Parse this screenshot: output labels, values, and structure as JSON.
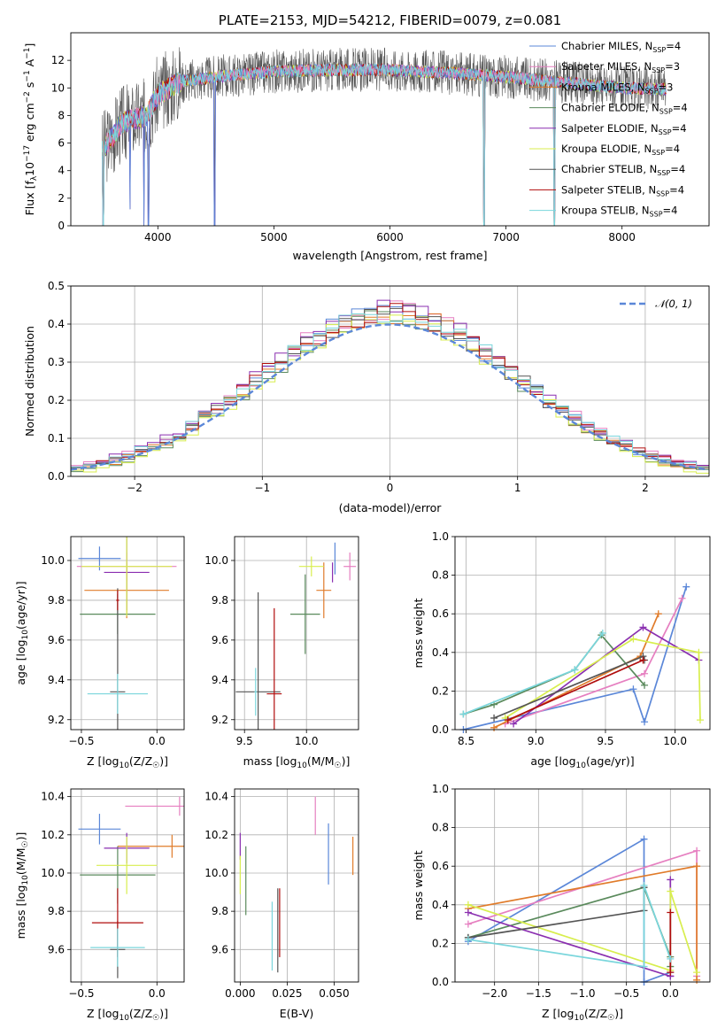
{
  "figure": {
    "title": "PLATE=2153, MJD=54212, FIBERID=0079, z=0.081"
  },
  "colors": {
    "Chabrier MILES": "#5b87d8",
    "Salpeter MILES": "#e67fc0",
    "Kroupa MILES": "#e07b2a",
    "Chabrier ELODIE": "#5a8a5c",
    "Salpeter ELODIE": "#8a2fb0",
    "Kroupa ELODIE": "#d8ee4e",
    "Chabrier STELIB": "#555555",
    "Salpeter STELIB": "#b00c0c",
    "Kroupa STELIB": "#7ad6dc"
  },
  "chart_data": [
    {
      "id": "spectrum",
      "type": "line",
      "title": "PLATE=2153, MJD=54212, FIBERID=0079, z=0.081",
      "xlabel": "wavelength [Angstrom, rest frame]",
      "ylabel": "Flux [f",
      "ylabel_sub": "λ",
      "ylabel_mid": "10",
      "ylabel_sup1": "−17",
      "ylabel_rest": " erg cm",
      "ylabel_sup2": "−2",
      "ylabel_rest2": " s",
      "ylabel_sup3": "−1",
      "ylabel_rest3": " A",
      "ylabel_sup4": "−1",
      "ylabel_end": "]",
      "xlim": [
        3250,
        8750
      ],
      "ylim": [
        0,
        14
      ],
      "xticks": [
        4000,
        5000,
        6000,
        7000,
        8000
      ],
      "yticks": [
        0,
        2,
        4,
        6,
        8,
        10,
        12
      ],
      "data_range": [
        3520,
        8380
      ],
      "legend_position": "right",
      "legend": [
        {
          "name": "Chabrier MILES",
          "base": "Chabrier MILES, N",
          "sub": "SSP",
          "value": "=4"
        },
        {
          "name": "Salpeter MILES",
          "base": "Salpeter MILES, N",
          "sub": "SSP",
          "value": "=3"
        },
        {
          "name": "Kroupa MILES",
          "base": "Kroupa MILES, N",
          "sub": "SSP",
          "value": "=3"
        },
        {
          "name": "Chabrier ELODIE",
          "base": "Chabrier ELODIE, N",
          "sub": "SSP",
          "value": "=4"
        },
        {
          "name": "Salpeter ELODIE",
          "base": "Salpeter ELODIE, N",
          "sub": "SSP",
          "value": "=4"
        },
        {
          "name": "Kroupa ELODIE",
          "base": "Kroupa ELODIE, N",
          "sub": "SSP",
          "value": "=4"
        },
        {
          "name": "Chabrier STELIB",
          "base": "Chabrier STELIB, N",
          "sub": "SSP",
          "value": "=4"
        },
        {
          "name": "Salpeter STELIB",
          "base": "Salpeter STELIB, N",
          "sub": "SSP",
          "value": "=4"
        },
        {
          "name": "Kroupa STELIB",
          "base": "Kroupa STELIB, N",
          "sub": "SSP",
          "value": "=4"
        }
      ],
      "shape_points": [
        [
          3520,
          5.5
        ],
        [
          3700,
          7.5
        ],
        [
          3900,
          8.0
        ],
        [
          4000,
          9.5
        ],
        [
          4200,
          10.5
        ],
        [
          4500,
          10.8
        ],
        [
          5000,
          11.2
        ],
        [
          5500,
          11.3
        ],
        [
          6000,
          11.3
        ],
        [
          6500,
          11.1
        ],
        [
          7000,
          10.8
        ],
        [
          7500,
          10.4
        ],
        [
          8000,
          10.0
        ],
        [
          8380,
          9.9
        ]
      ],
      "spikes_down": [
        {
          "x": 3530,
          "y": 0.0
        },
        {
          "x": 3760,
          "y": 1.2
        },
        {
          "x": 3880,
          "y": 0.0
        },
        {
          "x": 3920,
          "y": 0.0
        },
        {
          "x": 4490,
          "y": 0.0
        },
        {
          "x": 6810,
          "y": 0.0
        },
        {
          "x": 7415,
          "y": 0.0
        }
      ]
    },
    {
      "id": "residuals",
      "type": "histogram",
      "xlabel": "(data-model)/error",
      "ylabel": "Normed distribution",
      "xlim": [
        -2.5,
        2.5
      ],
      "ylim": [
        0,
        0.5
      ],
      "xticks": [
        -2,
        -1,
        0,
        1,
        2
      ],
      "xtick_labels": [
        "−2",
        "−1",
        "0",
        "1",
        "2"
      ],
      "yticks": [
        0.0,
        0.1,
        0.2,
        0.3,
        0.4,
        0.5
      ],
      "ytick_labels": [
        "0.0",
        "0.1",
        "0.2",
        "0.3",
        "0.4",
        "0.5"
      ],
      "bin_width": 0.1,
      "legend_position": "top-right",
      "legend_label": "𝒩(0, 1)",
      "series": [
        {
          "name": "Chabrier MILES",
          "offset": 0.0,
          "seed": 1
        },
        {
          "name": "Salpeter MILES",
          "offset": 0.006,
          "seed": 2
        },
        {
          "name": "Kroupa MILES",
          "offset": -0.004,
          "seed": 3
        },
        {
          "name": "Chabrier ELODIE",
          "offset": -0.006,
          "seed": 4
        },
        {
          "name": "Salpeter ELODIE",
          "offset": 0.008,
          "seed": 5
        },
        {
          "name": "Kroupa ELODIE",
          "offset": -0.01,
          "seed": 6
        },
        {
          "name": "Chabrier STELIB",
          "offset": -0.002,
          "seed": 7
        },
        {
          "name": "Salpeter STELIB",
          "offset": 0.002,
          "seed": 8
        },
        {
          "name": "Kroupa STELIB",
          "offset": 0.004,
          "seed": 9
        }
      ]
    },
    {
      "id": "age-vs-Z",
      "type": "errorbar",
      "xlabel": "Z [log",
      "xlabel_sub": "10",
      "xlabel_rest": "(Z/Z",
      "xlabel_sub2": "☉",
      "xlabel_end": ")]",
      "ylabel": "age  [log",
      "ylabel_sub": "10",
      "ylabel_rest": "(age/yr)]",
      "xlim": [
        -0.57,
        0.18
      ],
      "ylim": [
        9.15,
        10.12
      ],
      "xticks": [
        -0.5,
        0.0
      ],
      "xtick_labels": [
        "−0.5",
        "0.0"
      ],
      "yticks": [
        9.2,
        9.4,
        9.6,
        9.8,
        10.0
      ],
      "ytick_labels": [
        "9.2",
        "9.4",
        "9.6",
        "9.8",
        "10.0"
      ],
      "points": [
        {
          "name": "Chabrier MILES",
          "x": -0.38,
          "xerr": 0.14,
          "y": 10.01,
          "yerr": 0.06
        },
        {
          "name": "Salpeter MILES",
          "x": -0.2,
          "xerr": 0.33,
          "y": 9.97,
          "yerr": 0.07
        },
        {
          "name": "Kroupa MILES",
          "x": -0.2,
          "xerr": 0.28,
          "y": 9.85,
          "yerr": 0.14
        },
        {
          "name": "Chabrier ELODIE",
          "x": -0.26,
          "xerr": 0.25,
          "y": 9.73,
          "yerr": 0.1
        },
        {
          "name": "Salpeter ELODIE",
          "x": -0.2,
          "xerr": 0.15,
          "y": 9.94,
          "yerr": 0.19
        },
        {
          "name": "Kroupa ELODIE",
          "x": -0.2,
          "xerr": 0.3,
          "y": 9.97,
          "yerr": 0.25
        },
        {
          "name": "Chabrier STELIB",
          "x": -0.26,
          "xerr": 0.05,
          "y": 9.34,
          "yerr": 0.52
        },
        {
          "name": "Salpeter STELIB",
          "x": -0.26,
          "xerr": 0.01,
          "y": 9.8,
          "yerr": 0.05
        },
        {
          "name": "Kroupa STELIB",
          "x": -0.26,
          "xerr": 0.2,
          "y": 9.33,
          "yerr": 0.1
        }
      ]
    },
    {
      "id": "age-vs-mass",
      "type": "errorbar",
      "xlabel": "mass [log",
      "xlabel_sub": "10",
      "xlabel_rest": "(M/M",
      "xlabel_sub2": "☉",
      "xlabel_end": ")]",
      "xlim": [
        9.42,
        10.42
      ],
      "ylim": [
        9.15,
        10.12
      ],
      "xticks": [
        9.5,
        10.0
      ],
      "xtick_labels": [
        "9.5",
        "10.0"
      ],
      "yticks": [
        9.2,
        9.4,
        9.6,
        9.8,
        10.0
      ],
      "ytick_labels": [
        "9.2",
        "9.4",
        "9.6",
        "9.8",
        "10.0"
      ],
      "points": [
        {
          "name": "Chabrier MILES",
          "x": 10.23,
          "xerr": 0.0,
          "y": 10.01,
          "yerr": 0.08
        },
        {
          "name": "Salpeter MILES",
          "x": 10.35,
          "xerr": 0.05,
          "y": 9.97,
          "yerr": 0.07
        },
        {
          "name": "Kroupa MILES",
          "x": 10.14,
          "xerr": 0.06,
          "y": 9.85,
          "yerr": 0.14
        },
        {
          "name": "Chabrier ELODIE",
          "x": 9.99,
          "xerr": 0.12,
          "y": 9.73,
          "yerr": 0.2
        },
        {
          "name": "Salpeter ELODIE",
          "x": 10.21,
          "xerr": 0.0,
          "y": 9.94,
          "yerr": 0.05
        },
        {
          "name": "Kroupa ELODIE",
          "x": 10.04,
          "xerr": 0.1,
          "y": 9.97,
          "yerr": 0.05
        },
        {
          "name": "Chabrier STELIB",
          "x": 9.61,
          "xerr": 0.18,
          "y": 9.34,
          "yerr": 0.5
        },
        {
          "name": "Salpeter STELIB",
          "x": 9.74,
          "xerr": 0.06,
          "y": 9.33,
          "yerr": 0.43
        },
        {
          "name": "Kroupa STELIB",
          "x": 9.59,
          "xerr": 0.01,
          "y": 9.34,
          "yerr": 0.12
        }
      ]
    },
    {
      "id": "weight-vs-age",
      "type": "line",
      "xlabel": "age  [log",
      "xlabel_sub": "10",
      "xlabel_rest": "(age/yr)]",
      "ylabel": "mass weight",
      "xlim": [
        8.42,
        10.25
      ],
      "ylim": [
        0,
        1
      ],
      "xticks": [
        8.5,
        9.0,
        9.5,
        10.0
      ],
      "xtick_labels": [
        "8.5",
        "9.0",
        "9.5",
        "10.0"
      ],
      "yticks": [
        0,
        0.2,
        0.4,
        0.6,
        0.8,
        1.0
      ],
      "ytick_labels": [
        "0.0",
        "0.2",
        "0.4",
        "0.6",
        "0.8",
        "1.0"
      ],
      "series": [
        {
          "name": "Chabrier MILES",
          "x": [
            8.48,
            9.7,
            9.78,
            10.08
          ],
          "y": [
            0.0,
            0.21,
            0.04,
            0.74
          ]
        },
        {
          "name": "Salpeter MILES",
          "x": [
            8.78,
            9.78,
            10.05
          ],
          "y": [
            0.03,
            0.29,
            0.68
          ]
        },
        {
          "name": "Kroupa MILES",
          "x": [
            8.7,
            9.75,
            9.88
          ],
          "y": [
            0.01,
            0.38,
            0.6
          ]
        },
        {
          "name": "Chabrier ELODIE",
          "x": [
            8.48,
            8.7,
            9.28,
            9.47,
            9.78
          ],
          "y": [
            0.08,
            0.13,
            0.31,
            0.49,
            0.23
          ]
        },
        {
          "name": "Salpeter ELODIE",
          "x": [
            8.84,
            9.77,
            10.17
          ],
          "y": [
            0.03,
            0.53,
            0.36
          ]
        },
        {
          "name": "Kroupa ELODIE",
          "x": [
            8.78,
            9.7,
            10.17,
            10.18
          ],
          "y": [
            0.06,
            0.47,
            0.4,
            0.05
          ]
        },
        {
          "name": "Chabrier STELIB",
          "x": [
            8.7,
            9.77,
            9.78
          ],
          "y": [
            0.06,
            0.38,
            0.36
          ]
        },
        {
          "name": "Salpeter STELIB",
          "x": [
            8.8,
            9.77
          ],
          "y": [
            0.05,
            0.36
          ]
        },
        {
          "name": "Kroupa STELIB",
          "x": [
            8.48,
            9.28,
            9.48
          ],
          "y": [
            0.08,
            0.31,
            0.5
          ]
        }
      ]
    },
    {
      "id": "mass-vs-Z",
      "type": "errorbar",
      "xlabel": "Z [log",
      "xlabel_sub": "10",
      "xlabel_rest": "(Z/Z",
      "xlabel_sub2": "☉",
      "xlabel_end": ")]",
      "ylabel": "mass [log",
      "ylabel_sub": "10",
      "ylabel_rest": "(M/M",
      "ylabel_sub2": "☉",
      "ylabel_end": ")]",
      "xlim": [
        -0.57,
        0.18
      ],
      "ylim": [
        9.43,
        10.44
      ],
      "xticks": [
        -0.5,
        0.0
      ],
      "xtick_labels": [
        "−0.5",
        "0.0"
      ],
      "yticks": [
        9.6,
        9.8,
        10.0,
        10.2,
        10.4
      ],
      "ytick_labels": [
        "9.6",
        "9.8",
        "10.0",
        "10.2",
        "10.4"
      ],
      "points": [
        {
          "name": "Chabrier MILES",
          "x": -0.38,
          "xerr": 0.14,
          "y": 10.23,
          "yerr": 0.08
        },
        {
          "name": "Salpeter MILES",
          "x": 0.15,
          "xerr": 0.36,
          "y": 10.35,
          "yerr": 0.05
        },
        {
          "name": "Kroupa MILES",
          "x": 0.1,
          "xerr": 0.36,
          "y": 10.14,
          "yerr": 0.06
        },
        {
          "name": "Chabrier ELODIE",
          "x": -0.26,
          "xerr": 0.25,
          "y": 9.99,
          "yerr": 0.15
        },
        {
          "name": "Salpeter ELODIE",
          "x": -0.2,
          "xerr": 0.15,
          "y": 10.13,
          "yerr": 0.08
        },
        {
          "name": "Kroupa ELODIE",
          "x": -0.2,
          "xerr": 0.2,
          "y": 10.04,
          "yerr": 0.15
        },
        {
          "name": "Chabrier STELIB",
          "x": -0.26,
          "xerr": 0.05,
          "y": 9.6,
          "yerr": 0.15
        },
        {
          "name": "Salpeter STELIB",
          "x": -0.26,
          "xerr": 0.17,
          "y": 9.74,
          "yerr": 0.18
        },
        {
          "name": "Kroupa STELIB",
          "x": -0.26,
          "xerr": 0.18,
          "y": 9.61,
          "yerr": 0.1
        }
      ]
    },
    {
      "id": "mass-vs-ebv",
      "type": "errorbar",
      "xlabel": "E(B-V)",
      "xlim": [
        -0.003,
        0.063
      ],
      "ylim": [
        9.43,
        10.44
      ],
      "xticks": [
        0.0,
        0.025,
        0.05
      ],
      "xtick_labels": [
        "0.000",
        "0.025",
        "0.050"
      ],
      "yticks": [
        9.6,
        9.8,
        10.0,
        10.2,
        10.4
      ],
      "ytick_labels": [
        "9.6",
        "9.8",
        "10.0",
        "10.2",
        "10.4"
      ],
      "points": [
        {
          "name": "Chabrier MILES",
          "x": 0.047,
          "xerr": 0.0,
          "y": 10.1,
          "yerr": 0.16
        },
        {
          "name": "Salpeter MILES",
          "x": 0.04,
          "xerr": 0.0,
          "y": 10.3,
          "yerr": 0.1
        },
        {
          "name": "Kroupa MILES",
          "x": 0.06,
          "xerr": 0.0,
          "y": 10.09,
          "yerr": 0.1
        },
        {
          "name": "Chabrier ELODIE",
          "x": 0.003,
          "xerr": 0.0,
          "y": 9.96,
          "yerr": 0.18
        },
        {
          "name": "Salpeter ELODIE",
          "x": 0.0,
          "xerr": 0.0,
          "y": 10.14,
          "yerr": 0.07
        },
        {
          "name": "Kroupa ELODIE",
          "x": 0.0,
          "xerr": 0.0,
          "y": 9.99,
          "yerr": 0.1
        },
        {
          "name": "Chabrier STELIB",
          "x": 0.02,
          "xerr": 0.0,
          "y": 9.7,
          "yerr": 0.22
        },
        {
          "name": "Salpeter STELIB",
          "x": 0.021,
          "xerr": 0.0,
          "y": 9.74,
          "yerr": 0.18
        },
        {
          "name": "Kroupa STELIB",
          "x": 0.017,
          "xerr": 0.0,
          "y": 9.67,
          "yerr": 0.18
        }
      ]
    },
    {
      "id": "weight-vs-Z",
      "type": "line",
      "xlabel": "Z [log",
      "xlabel_sub": "10",
      "xlabel_rest": "(Z/Z",
      "xlabel_sub2": "☉",
      "xlabel_end": ")]",
      "ylabel": "mass weight",
      "xlim": [
        -2.45,
        0.45
      ],
      "ylim": [
        0,
        1
      ],
      "xticks": [
        -2.0,
        -1.5,
        -1.0,
        -0.5,
        0.0
      ],
      "xtick_labels": [
        "−2.0",
        "−1.5",
        "−1.0",
        "−0.5",
        "0.0"
      ],
      "yticks": [
        0,
        0.2,
        0.4,
        0.6,
        0.8,
        1.0
      ],
      "ytick_labels": [
        "0.0",
        "0.2",
        "0.4",
        "0.6",
        "0.8",
        "1.0"
      ],
      "series": [
        {
          "name": "Chabrier MILES",
          "x": [
            -2.3,
            -0.3,
            -0.3,
            0.0,
            -0.3
          ],
          "y": [
            0.21,
            0.74,
            0.0,
            0.05,
            0.0
          ]
        },
        {
          "name": "Salpeter MILES",
          "x": [
            -2.3,
            0.3,
            0.3
          ],
          "y": [
            0.3,
            0.68,
            0.03
          ]
        },
        {
          "name": "Kroupa MILES",
          "x": [
            -2.3,
            0.3,
            0.3
          ],
          "y": [
            0.38,
            0.6,
            0.01
          ]
        },
        {
          "name": "Chabrier ELODIE",
          "x": [
            -2.3,
            -0.3,
            0.0,
            0.0
          ],
          "y": [
            0.23,
            0.49,
            0.13,
            0.08
          ]
        },
        {
          "name": "Salpeter ELODIE",
          "x": [
            -2.3,
            0.0,
            0.0,
            0.0
          ],
          "y": [
            0.36,
            0.03,
            0.53,
            0.03
          ]
        },
        {
          "name": "Kroupa ELODIE",
          "x": [
            -2.3,
            0.0,
            0.0,
            0.3
          ],
          "y": [
            0.4,
            0.06,
            0.47,
            0.05
          ]
        },
        {
          "name": "Chabrier STELIB",
          "x": [
            -2.3,
            -0.3,
            -0.3
          ],
          "y": [
            0.23,
            0.37,
            0.49
          ]
        },
        {
          "name": "Salpeter STELIB",
          "x": [
            0.0,
            0.0
          ],
          "y": [
            0.05,
            0.36
          ]
        },
        {
          "name": "Kroupa STELIB",
          "x": [
            -2.3,
            -0.3,
            -0.3,
            0.0
          ],
          "y": [
            0.22,
            0.08,
            0.5,
            0.12
          ]
        }
      ]
    }
  ]
}
